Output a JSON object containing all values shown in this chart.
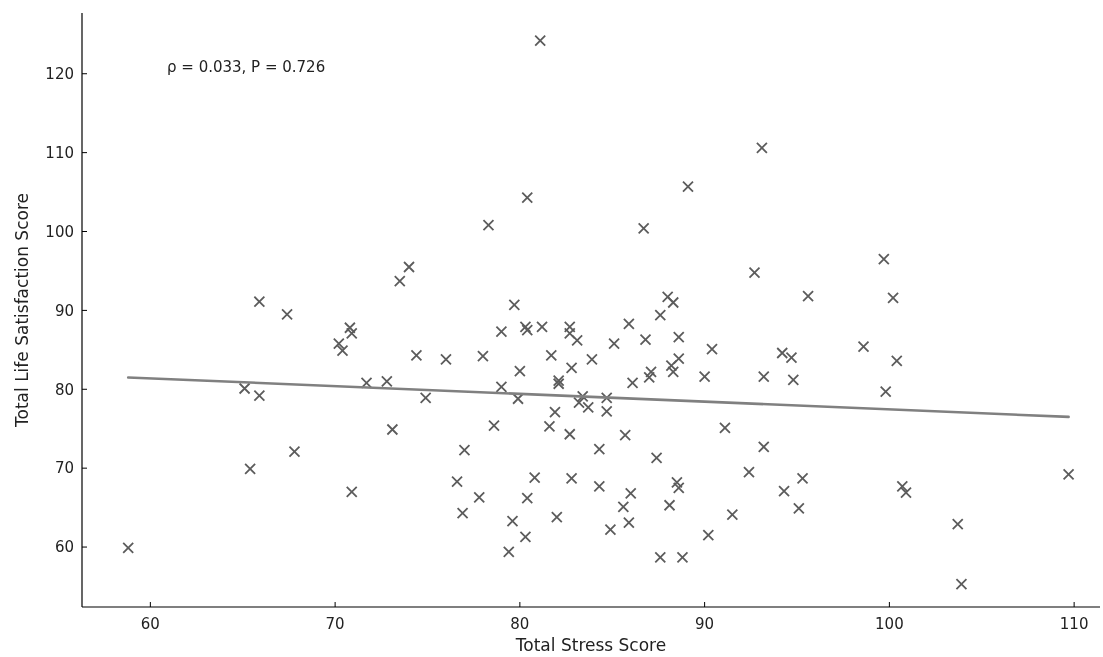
{
  "chart_data": {
    "type": "scatter",
    "xlabel": "Total Stress Score",
    "ylabel": "Total Life Satisfaction Score",
    "annotations": [
      "ρ = 0.033, P = 0.726"
    ],
    "xlim": [
      56.3,
      111.4
    ],
    "ylim": [
      52.4,
      127.7
    ],
    "xticks": [
      60,
      70,
      80,
      90,
      100,
      110
    ],
    "yticks": [
      60,
      70,
      80,
      90,
      100,
      110,
      120
    ],
    "grid": false,
    "series": [
      {
        "marker": "cross",
        "color": "#5c5c5c",
        "x": [
          58.8,
          65.9,
          67.4,
          65.1,
          65.9,
          65.4,
          67.8,
          70.2,
          70.4,
          70.8,
          70.9,
          70.9,
          71.7,
          72.8,
          73.1,
          73.5,
          74.0,
          74.4,
          74.9,
          81.1,
          93.1,
          89.1,
          80.4,
          78.3,
          86.7,
          92.7,
          88.0,
          88.3,
          79.7,
          87.6,
          85.9,
          79.0,
          80.3,
          80.4,
          81.2,
          82.7,
          82.7,
          83.1,
          85.1,
          86.8,
          88.6,
          90.4,
          76.0,
          78.0,
          81.7,
          83.9,
          88.6,
          88.2,
          80.0,
          82.8,
          88.3,
          87.1,
          87.0,
          90.0,
          93.2,
          82.1,
          82.1,
          86.1,
          79.0,
          79.9,
          83.4,
          83.2,
          83.7,
          84.7,
          84.7,
          81.9,
          78.6,
          81.6,
          82.7,
          85.7,
          91.1,
          77.0,
          84.3,
          87.4,
          93.2,
          92.4,
          76.6,
          80.8,
          82.8,
          84.3,
          88.5,
          88.6,
          77.8,
          80.4,
          86.0,
          85.6,
          88.1,
          91.5,
          76.9,
          79.6,
          82.0,
          85.9,
          80.3,
          84.9,
          90.2,
          79.4,
          87.6,
          88.8,
          99.7,
          95.6,
          100.2,
          94.2,
          94.7,
          98.6,
          100.4,
          94.8,
          99.8,
          95.3,
          94.3,
          95.1,
          100.7,
          100.9,
          103.7,
          103.9,
          109.7
        ],
        "values": [
          59.9,
          91.1,
          89.5,
          80.1,
          79.2,
          69.9,
          72.1,
          85.8,
          84.9,
          87.8,
          87.1,
          67.0,
          80.8,
          81.0,
          74.9,
          93.7,
          95.5,
          84.3,
          78.9,
          124.2,
          110.6,
          105.7,
          104.3,
          100.8,
          100.4,
          94.8,
          91.7,
          91.0,
          90.7,
          89.4,
          88.3,
          87.3,
          87.9,
          87.5,
          87.9,
          87.9,
          87.1,
          86.2,
          85.8,
          86.3,
          86.6,
          85.1,
          83.8,
          84.2,
          84.3,
          83.8,
          83.9,
          83.0,
          82.3,
          82.7,
          82.2,
          82.2,
          81.5,
          81.6,
          81.6,
          81.1,
          80.7,
          80.8,
          80.3,
          78.8,
          79.1,
          78.3,
          77.7,
          78.9,
          77.2,
          77.1,
          75.4,
          75.3,
          74.3,
          74.2,
          75.1,
          72.3,
          72.4,
          71.3,
          72.7,
          69.5,
          68.3,
          68.8,
          68.7,
          67.7,
          68.2,
          67.5,
          66.3,
          66.2,
          66.8,
          65.1,
          65.3,
          64.1,
          64.3,
          63.3,
          63.8,
          63.1,
          61.3,
          62.2,
          61.5,
          59.4,
          58.7,
          58.7,
          96.5,
          91.8,
          91.6,
          84.6,
          84.0,
          85.4,
          83.6,
          81.2,
          79.7,
          68.7,
          67.1,
          64.9,
          67.7,
          66.9,
          62.9,
          55.3,
          69.2
        ]
      },
      {
        "type": "line",
        "color": "#808080",
        "x": [
          58.8,
          109.7
        ],
        "values": [
          81.5,
          76.5
        ]
      }
    ]
  }
}
